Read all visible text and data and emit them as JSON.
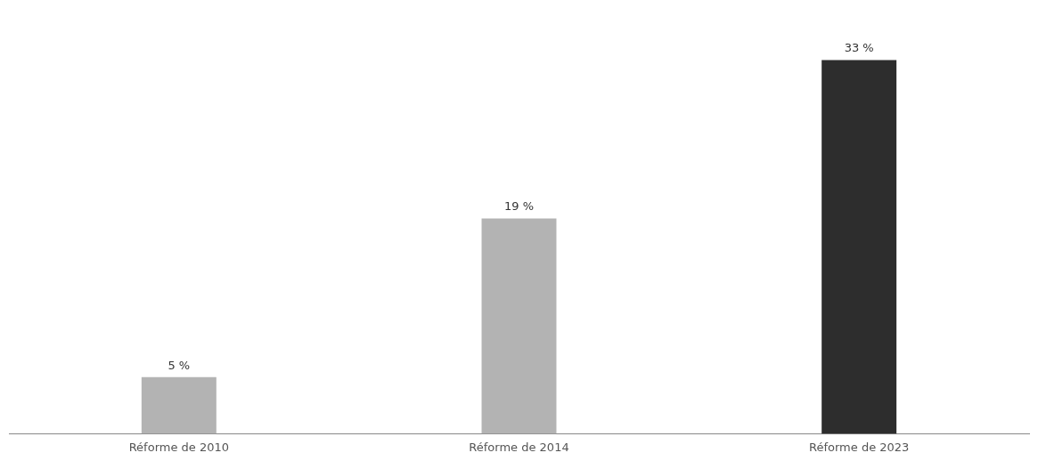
{
  "chart_data": {
    "type": "bar",
    "categories": [
      "Réforme de 2010",
      "Réforme de 2014",
      "Réforme de 2023"
    ],
    "values": [
      5,
      19,
      33
    ],
    "colors": [
      "#b3b3b3",
      "#b3b3b3",
      "#2d2d2d"
    ],
    "value_labels": [
      "5 %",
      "19 %",
      "33 %"
    ],
    "grid": false,
    "legend": false
  }
}
